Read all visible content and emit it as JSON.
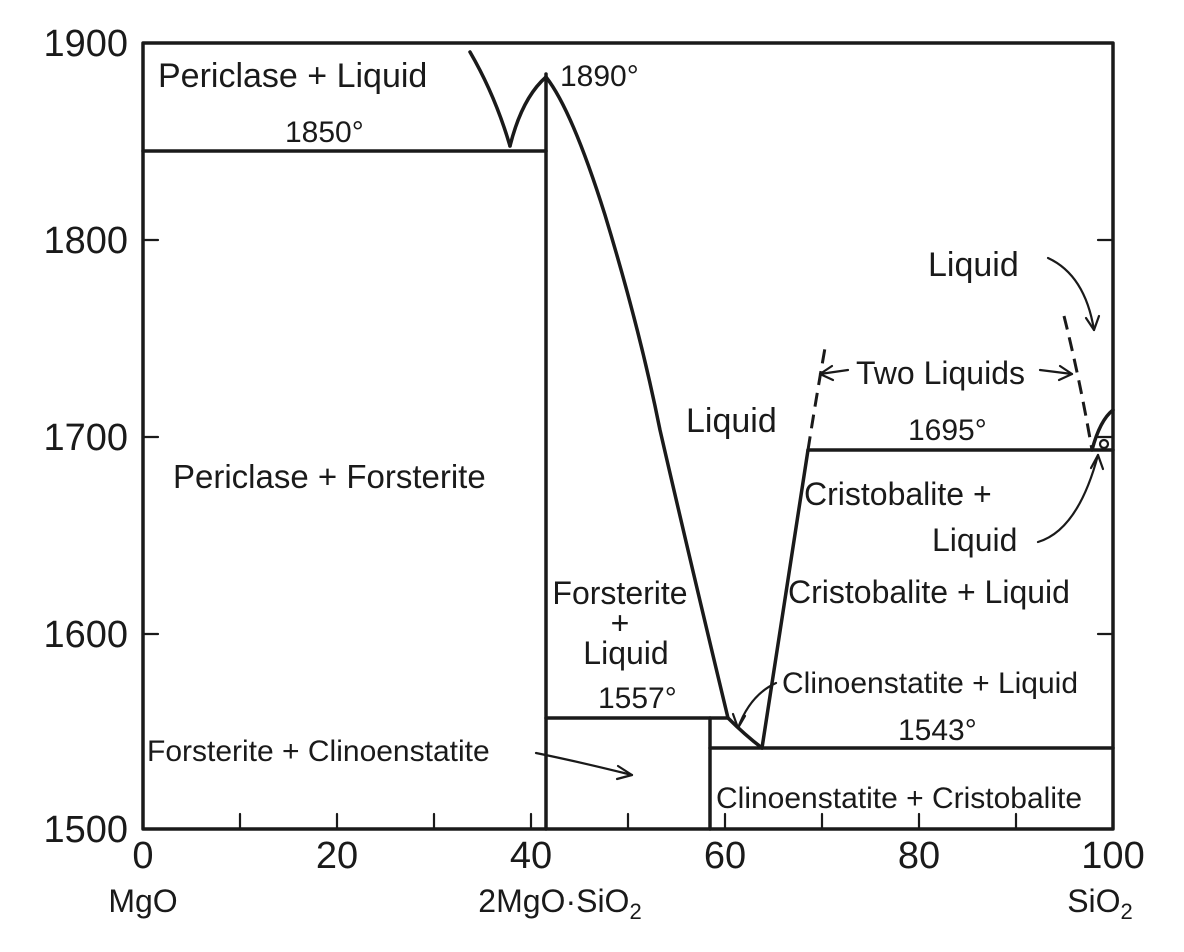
{
  "chart_data": {
    "type": "phase-diagram",
    "title": "",
    "xlabel": "",
    "ylabel": "",
    "xlim": [
      0,
      100
    ],
    "ylim": [
      1500,
      1900
    ],
    "x_ticks": [
      "0",
      "20",
      "40",
      "60",
      "80",
      "100"
    ],
    "y_ticks": [
      "1500",
      "1600",
      "1700",
      "1800",
      "1900"
    ],
    "components": {
      "left": "MgO",
      "middle": "2MgO·SiO",
      "middle_sub": "2",
      "right": "SiO",
      "right_sub": "2"
    },
    "temperatures": {
      "forsterite_melt": "1890°",
      "eutectic_1": "1850°",
      "peritectic": "1557°",
      "eutectic_2": "1543°",
      "monotectic": "1695°"
    },
    "regions": {
      "periclase_liquid": "Periclase + Liquid",
      "periclase_forsterite": "Periclase + Forsterite",
      "liquid_center": "Liquid",
      "forsterite_1": "Forsterite",
      "forsterite_plus": "+",
      "forsterite_2": "Liquid",
      "forsterite_clinoenstatite": "Forsterite + Clinoenstatite",
      "clinoenstatite_liquid": "Clinoenstatite + Liquid",
      "clinoenstatite_cristobalite": "Clinoenstatite + Cristobalite",
      "cristobalite_liquid": "Cristobalite + Liquid",
      "cristobalite_liquid_small_1": "Cristobalite +",
      "cristobalite_liquid_small_2": "Liquid",
      "two_liquids": "Two Liquids",
      "liquid_top": "Liquid"
    }
  }
}
